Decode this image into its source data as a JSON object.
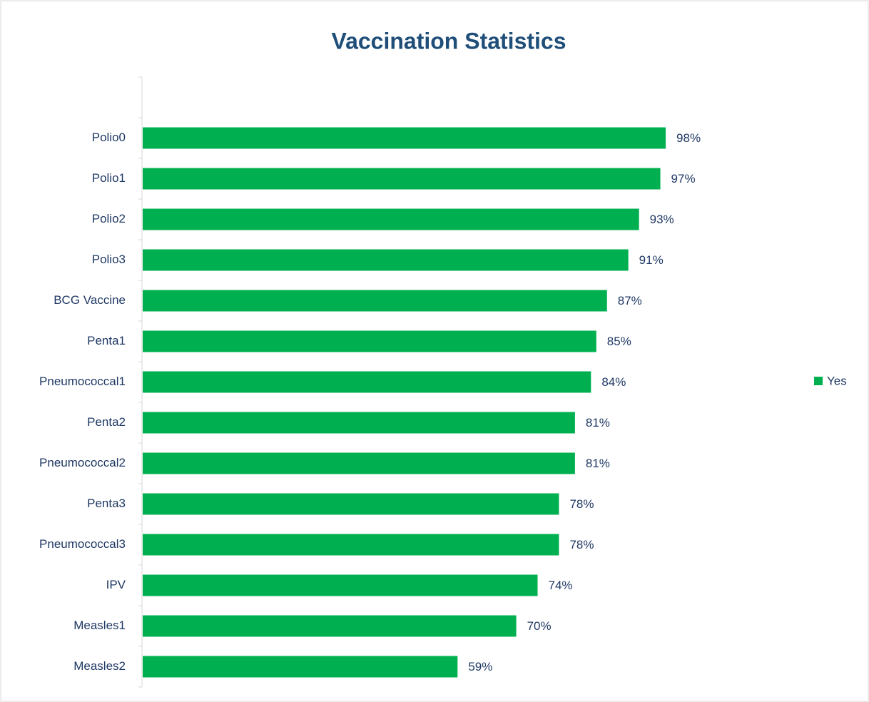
{
  "chart_data": {
    "type": "bar",
    "orientation": "horizontal",
    "title": "Vaccination Statistics",
    "categories": [
      null,
      "Polio0",
      "Polio1",
      "Polio2",
      "Polio3",
      "BCG Vaccine",
      "Penta1",
      "Pneumococcal1",
      "Penta2",
      "Pneumococcal2",
      "Penta3",
      "Pneumococcal3",
      "IPV",
      "Measles1",
      "Measles2"
    ],
    "series": [
      {
        "name": "Yes",
        "color": "#00b050",
        "values": [
          null,
          98,
          97,
          93,
          91,
          87,
          85,
          84,
          81,
          81,
          78,
          78,
          74,
          70,
          59
        ],
        "value_labels": [
          null,
          "98%",
          "97%",
          "93%",
          "91%",
          "87%",
          "85%",
          "84%",
          "81%",
          "81%",
          "78%",
          "78%",
          "74%",
          "70%",
          "59%"
        ]
      }
    ],
    "xlim": [
      0,
      100
    ],
    "legend": "right"
  }
}
